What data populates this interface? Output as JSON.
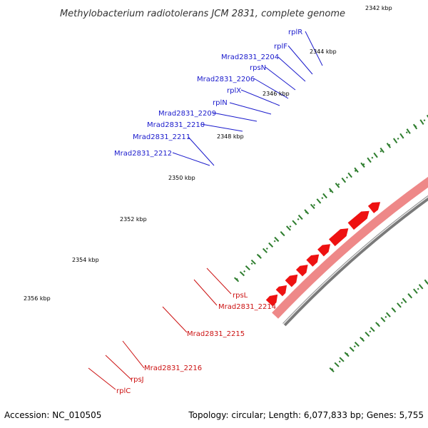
{
  "title": "Methylobacterium radiotolerans JCM 2831, complete genome",
  "footer": {
    "accession": "Accession: NC_010505",
    "summary": "Topology: circular; Length: 6,077,833 bp; Genes: 5,755"
  },
  "colors": {
    "backbone": "#7a7a7a",
    "forward_cds": "#ee1111",
    "forward_gene": "#ee8888",
    "reverse_cds": "#1111dd",
    "rrna_like": "#3377aa",
    "special": "#99ee33",
    "special2": "#33bbee",
    "tick": "#2e7d2e",
    "label_top": "#1a1acc",
    "label_bottom": "#cc1111",
    "leader_top": "#1a1acc",
    "leader_bottom": "#cc1111"
  },
  "scale_labels": [
    "2342 kbp",
    "2344 kbp",
    "2346 kbp",
    "2348 kbp",
    "2350 kbp",
    "2352 kbp",
    "2354 kbp",
    "2356 kbp"
  ],
  "gene_labels_reverse": [
    "rplR",
    "rplF",
    "Mrad2831_2204",
    "rpsN",
    "Mrad2831_2206",
    "rplX",
    "rplN",
    "Mrad2831_2209",
    "Mrad2831_2210",
    "Mrad2831_2211",
    "Mrad2831_2212"
  ],
  "gene_labels_forward": [
    "rpsL",
    "Mrad2831_2214",
    "Mrad2831_2215",
    "Mrad2831_2216",
    "rpsJ",
    "rplC"
  ]
}
